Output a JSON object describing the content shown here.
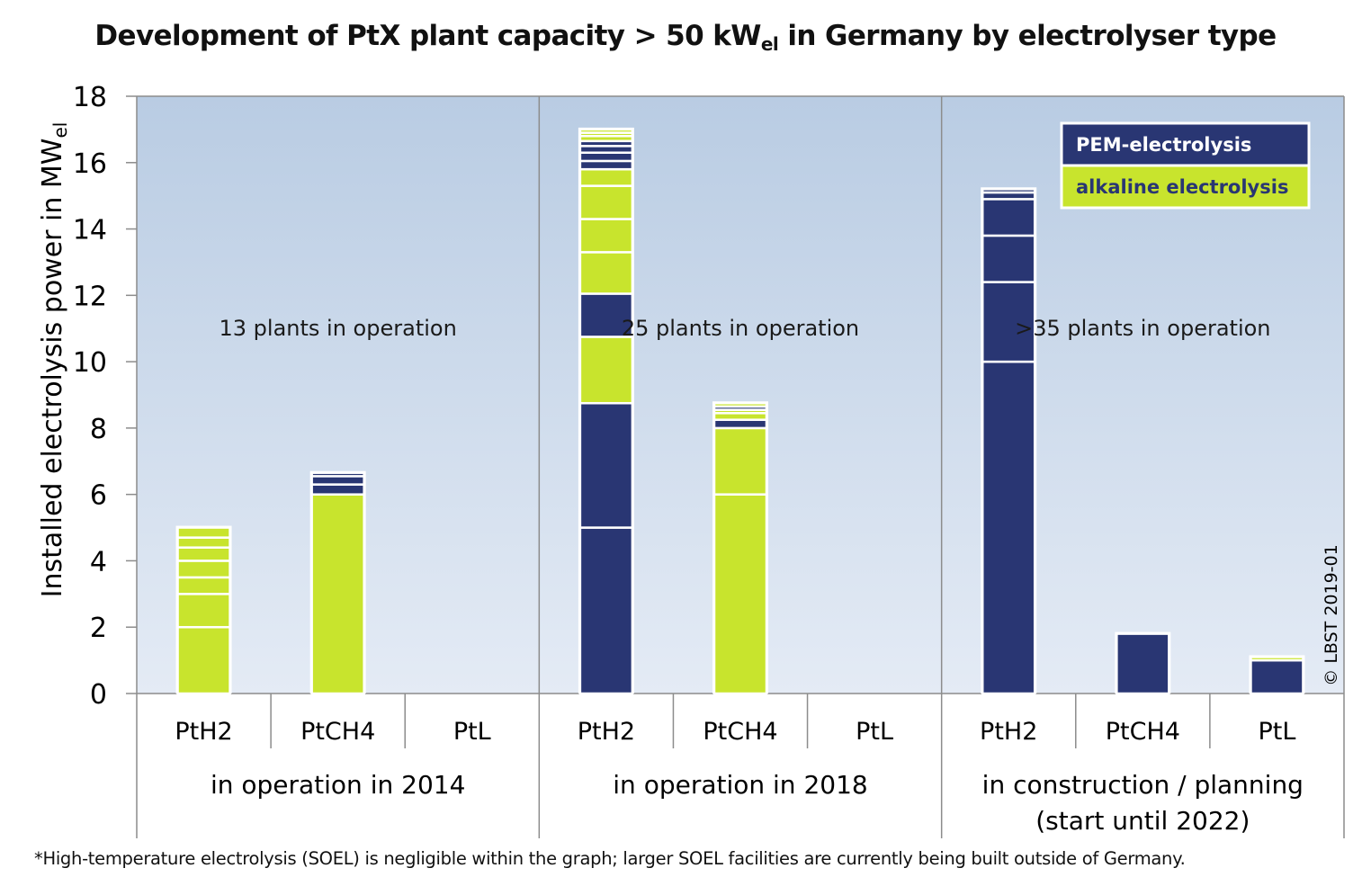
{
  "chart_data": {
    "type": "bar",
    "title_parts": [
      "Development of PtX plant capacity > 50 kW",
      "el",
      " in Germany by electrolyser type"
    ],
    "ylabel_parts": [
      "Installed electrolysis power in MW",
      "el"
    ],
    "ylim": [
      0,
      18
    ],
    "yticks": [
      "0",
      "2",
      "4",
      "6",
      "8",
      "10",
      "12",
      "14",
      "16",
      "18"
    ],
    "ytick_values": [
      0,
      2,
      4,
      6,
      8,
      10,
      12,
      14,
      16,
      18
    ],
    "colors": {
      "pem": "#293673",
      "alkaline": "#c8e42d",
      "bg_top": "#b9cce3",
      "bg_bottom": "#e4ebf5"
    },
    "legend": {
      "placement": "top-right",
      "items": [
        {
          "key": "pem",
          "label": "PEM-electrolysis"
        },
        {
          "key": "alkaline",
          "label": "alkaline electrolysis"
        }
      ]
    },
    "groups": [
      {
        "label_lines": [
          "in operation in 2014"
        ],
        "annotation": "13 plants in operation",
        "bars": [
          {
            "category": "PtH2",
            "segments": [
              {
                "type": "alkaline",
                "value": 2.0
              },
              {
                "type": "alkaline",
                "value": 1.0
              },
              {
                "type": "alkaline",
                "value": 0.5
              },
              {
                "type": "alkaline",
                "value": 0.5
              },
              {
                "type": "alkaline",
                "value": 0.4
              },
              {
                "type": "alkaline",
                "value": 0.3
              },
              {
                "type": "alkaline",
                "value": 0.3
              }
            ]
          },
          {
            "category": "PtCH4",
            "segments": [
              {
                "type": "alkaline",
                "value": 6.0
              },
              {
                "type": "pem",
                "value": 0.3
              },
              {
                "type": "pem",
                "value": 0.25
              },
              {
                "type": "pem",
                "value": 0.1
              }
            ]
          },
          {
            "category": "PtL",
            "segments": []
          }
        ]
      },
      {
        "label_lines": [
          "in operation in 2018"
        ],
        "annotation": "25 plants in operation",
        "bars": [
          {
            "category": "PtH2",
            "segments": [
              {
                "type": "pem",
                "value": 5.0
              },
              {
                "type": "pem",
                "value": 3.75
              },
              {
                "type": "alkaline",
                "value": 2.0
              },
              {
                "type": "pem",
                "value": 1.3
              },
              {
                "type": "alkaline",
                "value": 1.25
              },
              {
                "type": "alkaline",
                "value": 1.0
              },
              {
                "type": "alkaline",
                "value": 1.0
              },
              {
                "type": "alkaline",
                "value": 0.5
              },
              {
                "type": "pem",
                "value": 0.25
              },
              {
                "type": "pem",
                "value": 0.25
              },
              {
                "type": "pem",
                "value": 0.2
              },
              {
                "type": "pem",
                "value": 0.15
              },
              {
                "type": "alkaline",
                "value": 0.15
              },
              {
                "type": "alkaline",
                "value": 0.1
              },
              {
                "type": "alkaline",
                "value": 0.1
              }
            ]
          },
          {
            "category": "PtCH4",
            "segments": [
              {
                "type": "alkaline",
                "value": 6.0
              },
              {
                "type": "alkaline",
                "value": 2.0
              },
              {
                "type": "pem",
                "value": 0.25
              },
              {
                "type": "alkaline",
                "value": 0.2
              },
              {
                "type": "alkaline",
                "value": 0.1
              },
              {
                "type": "pem",
                "value": 0.1
              },
              {
                "type": "alkaline",
                "value": 0.1
              }
            ]
          },
          {
            "category": "PtL",
            "segments": []
          }
        ]
      },
      {
        "label_lines": [
          "in construction / planning",
          "(start until 2022)"
        ],
        "annotation": ">35 plants in operation",
        "bars": [
          {
            "category": "PtH2",
            "segments": [
              {
                "type": "pem",
                "value": 10.0
              },
              {
                "type": "pem",
                "value": 2.4
              },
              {
                "type": "pem",
                "value": 1.4
              },
              {
                "type": "pem",
                "value": 1.1
              },
              {
                "type": "pem",
                "value": 0.2
              },
              {
                "type": "pem",
                "value": 0.1
              }
            ]
          },
          {
            "category": "PtCH4",
            "segments": [
              {
                "type": "pem",
                "value": 1.8
              }
            ]
          },
          {
            "category": "PtL",
            "segments": [
              {
                "type": "pem",
                "value": 1.0
              },
              {
                "type": "alkaline",
                "value": 0.1
              }
            ]
          }
        ]
      }
    ],
    "copyright": "© LBST 2019-01"
  },
  "footnote": "*High-temperature electrolysis (SOEL) is negligible within the graph; larger SOEL facilities are currently being built outside of Germany."
}
